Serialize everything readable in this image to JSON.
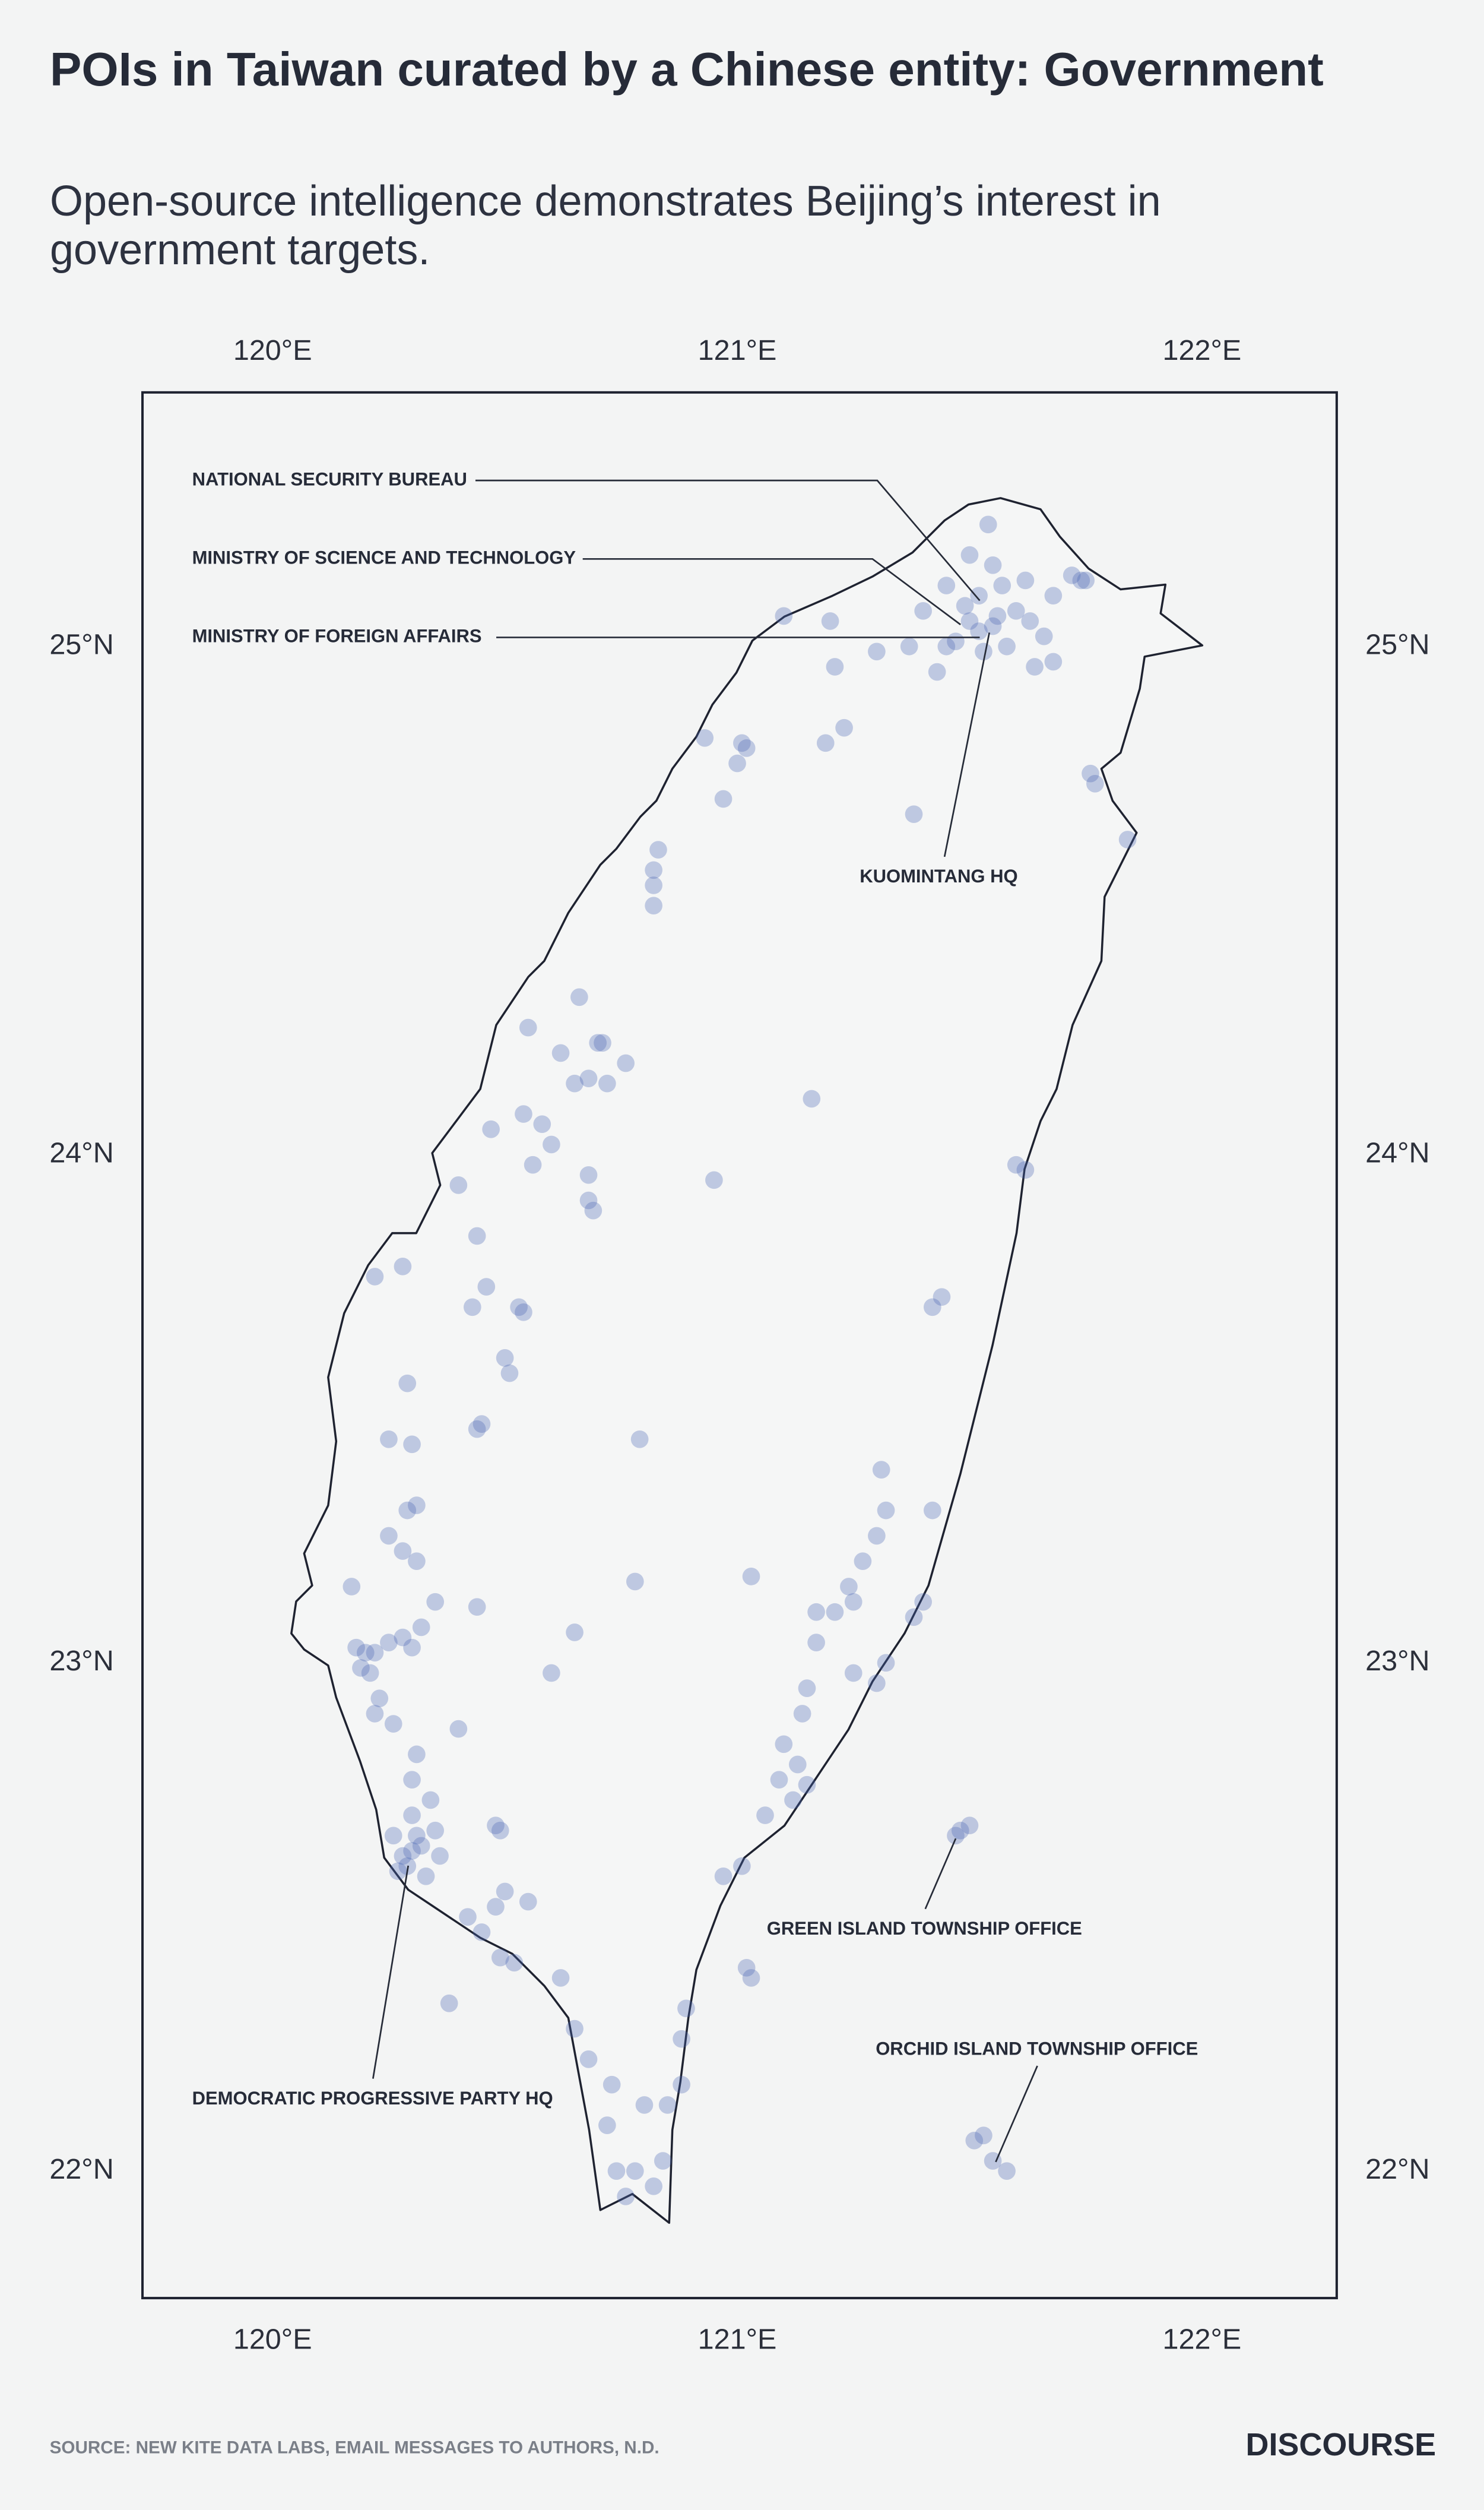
{
  "chart_data": {
    "type": "scatter",
    "title": "POIs in Taiwan curated by a Chinese entity: Government",
    "subtitle": "Open-source intelligence demonstrates Beijing’s interest in government targets.",
    "source": "SOURCE: NEW KITE DATA LABS, EMAIL MESSAGES TO AUTHORS, N.D.",
    "brand": "DISCOURSE",
    "color": "#4a66b5",
    "xlim": [
      119.72,
      122.29
    ],
    "ylim": [
      21.75,
      25.5
    ],
    "xticks": [
      {
        "value": 120,
        "label": "120°E"
      },
      {
        "value": 121,
        "label": "121°E"
      },
      {
        "value": 122,
        "label": "122°E"
      }
    ],
    "yticks": [
      {
        "value": 22,
        "label": "22°N"
      },
      {
        "value": 23,
        "label": "23°N"
      },
      {
        "value": 24,
        "label": "24°N"
      },
      {
        "value": 25,
        "label": "25°N"
      }
    ],
    "annotations": [
      "NATIONAL SECURITY BUREAU",
      "MINISTRY OF SCIENCE AND TECHNOLOGY",
      "MINISTRY OF FOREIGN AFFAIRS",
      "KUOMINTANG HQ",
      "GREEN ISLAND TOWNSHIP OFFICE",
      "ORCHID ISLAND TOWNSHIP OFFICE",
      "DEMOCRATIC PROGRESSIVE PARTY HQ"
    ],
    "x": [
      121.52,
      121.5,
      121.55,
      121.47,
      121.45,
      121.56,
      121.6,
      121.63,
      121.58,
      121.53,
      121.49,
      121.52,
      121.57,
      121.62,
      121.68,
      121.72,
      121.74,
      121.4,
      121.37,
      121.3,
      121.21,
      121.43,
      121.64,
      121.68,
      121.75,
      121.55,
      121.5,
      121.54,
      121.45,
      121.66,
      121.02,
      121.01,
      121.0,
      120.93,
      120.97,
      121.19,
      121.23,
      121.38,
      121.1,
      121.2,
      121.76,
      121.77,
      121.84,
      120.82,
      120.82,
      120.83,
      120.82,
      120.68,
      120.65,
      120.72,
      120.7,
      120.62,
      120.66,
      120.58,
      120.6,
      120.55,
      120.71,
      120.76,
      120.54,
      120.68,
      120.69,
      120.56,
      120.47,
      120.4,
      120.68,
      120.95,
      121.16,
      121.6,
      121.62,
      121.42,
      121.44,
      120.53,
      120.54,
      120.46,
      120.43,
      120.51,
      120.44,
      120.22,
      120.28,
      120.29,
      120.45,
      120.44,
      120.25,
      120.3,
      120.31,
      120.29,
      120.31,
      120.28,
      120.25,
      120.19,
      120.21,
      120.22,
      120.2,
      120.25,
      120.28,
      120.3,
      120.32,
      120.17,
      120.18,
      120.23,
      120.26,
      120.31,
      120.3,
      120.34,
      120.22,
      120.44,
      120.35,
      120.4,
      120.3,
      120.28,
      120.32,
      120.29,
      120.33,
      120.31,
      120.27,
      120.35,
      120.26,
      120.36,
      120.3,
      120.48,
      120.49,
      120.5,
      120.48,
      120.45,
      120.42,
      120.38,
      120.55,
      120.49,
      120.52,
      120.62,
      120.65,
      120.68,
      120.73,
      120.74,
      120.72,
      120.78,
      120.8,
      120.82,
      120.84,
      120.76,
      120.85,
      120.88,
      120.88,
      120.89,
      120.97,
      121.01,
      121.03,
      121.02,
      121.06,
      121.12,
      121.15,
      121.13,
      121.09,
      121.1,
      121.14,
      121.15,
      121.17,
      121.21,
      121.25,
      121.24,
      121.27,
      121.3,
      121.32,
      121.31,
      121.25,
      121.3,
      121.32,
      121.38,
      121.4,
      121.42,
      121.03,
      121.17,
      121.48,
      121.5,
      121.47,
      121.51,
      121.53,
      121.55,
      121.58,
      120.65,
      120.6,
      120.78,
      120.79,
      120.5
    ],
    "y": [
      25.03,
      25.05,
      25.04,
      25.01,
      25.0,
      25.06,
      25.07,
      25.05,
      25.0,
      24.99,
      25.08,
      25.1,
      25.12,
      25.13,
      25.1,
      25.14,
      25.13,
      25.07,
      25.0,
      24.99,
      24.96,
      24.95,
      24.96,
      24.97,
      25.13,
      25.16,
      25.18,
      25.24,
      25.12,
      25.02,
      24.8,
      24.81,
      24.77,
      24.82,
      24.7,
      24.81,
      24.84,
      24.67,
      25.06,
      25.05,
      24.75,
      24.73,
      24.62,
      24.56,
      24.53,
      24.6,
      24.49,
      24.15,
      24.14,
      24.14,
      24.22,
      24.2,
      24.31,
      24.06,
      24.02,
      24.25,
      24.22,
      24.18,
      24.08,
      23.91,
      23.89,
      23.98,
      24.05,
      23.94,
      23.96,
      23.95,
      24.11,
      23.98,
      23.97,
      23.7,
      23.72,
      23.7,
      23.69,
      23.74,
      23.7,
      23.57,
      23.84,
      23.76,
      23.78,
      23.55,
      23.47,
      23.46,
      23.44,
      23.43,
      23.31,
      23.3,
      23.2,
      23.22,
      23.25,
      22.99,
      22.98,
      23.02,
      23.02,
      23.04,
      23.05,
      23.03,
      23.07,
      23.15,
      23.03,
      22.93,
      22.88,
      22.82,
      22.77,
      22.73,
      22.9,
      23.11,
      23.12,
      22.87,
      22.63,
      22.62,
      22.64,
      22.6,
      22.58,
      22.66,
      22.59,
      22.67,
      22.66,
      22.62,
      22.7,
      22.68,
      22.67,
      22.55,
      22.52,
      22.47,
      22.5,
      22.33,
      22.53,
      22.42,
      22.41,
      22.38,
      22.28,
      22.22,
      22.17,
      22.0,
      22.09,
      22.0,
      22.13,
      21.97,
      22.02,
      21.95,
      22.13,
      22.17,
      22.26,
      22.32,
      22.58,
      22.6,
      22.38,
      22.4,
      22.7,
      22.73,
      22.76,
      22.8,
      22.77,
      22.84,
      22.9,
      22.95,
      23.04,
      23.1,
      23.12,
      23.15,
      23.2,
      23.25,
      23.3,
      23.38,
      22.98,
      22.96,
      23.0,
      23.09,
      23.12,
      23.3,
      23.17,
      23.1,
      22.67,
      22.68,
      22.66,
      22.06,
      22.07,
      22.02,
      22.0,
      23.06,
      22.98,
      23.16,
      23.44,
      23.6
    ]
  }
}
